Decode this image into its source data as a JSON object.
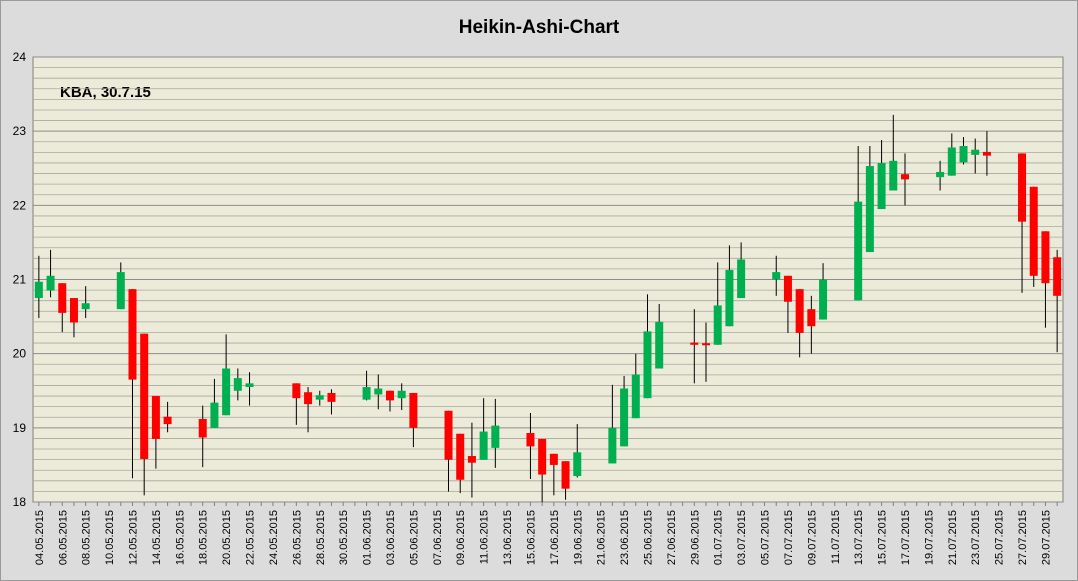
{
  "chart_data": {
    "type": "candlestick",
    "title": "Heikin-Ashi-Chart",
    "annotation": "KBA, 30.7.15",
    "categories": [
      "04.05.2015",
      null,
      "06.05.2015",
      null,
      "08.05.2015",
      null,
      "10.05.2015",
      null,
      "12.05.2015",
      null,
      "14.05.2015",
      null,
      "16.05.2015",
      null,
      "18.05.2015",
      null,
      "20.05.2015",
      null,
      "22.05.2015",
      null,
      "24.05.2015",
      null,
      "26.05.2015",
      null,
      "28.05.2015",
      null,
      "30.05.2015",
      null,
      "01.06.2015",
      null,
      "03.06.2015",
      null,
      "05.06.2015",
      null,
      "07.06.2015",
      null,
      "09.06.2015",
      null,
      "11.06.2015",
      null,
      "13.06.2015",
      null,
      "15.06.2015",
      null,
      "17.06.2015",
      null,
      "19.06.2015",
      null,
      "21.06.2015",
      null,
      "23.06.2015",
      null,
      "25.06.2015",
      null,
      "27.06.2015",
      null,
      "29.06.2015",
      null,
      "01.07.2015",
      null,
      "03.07.2015",
      null,
      "05.07.2015",
      null,
      "07.07.2015",
      null,
      "09.07.2015",
      null,
      "11.07.2015",
      null,
      "13.07.2015",
      null,
      "15.07.2015",
      null,
      "17.07.2015",
      null,
      "19.07.2015",
      null,
      "21.07.2015",
      null,
      "23.07.2015",
      null,
      "25.07.2015",
      null,
      "27.07.2015",
      null,
      "29.07.2015",
      null
    ],
    "open": [
      20.75,
      20.85,
      20.95,
      20.75,
      20.6,
      null,
      null,
      20.6,
      20.87,
      20.27,
      19.43,
      19.15,
      null,
      null,
      19.12,
      19.0,
      19.17,
      19.5,
      19.55,
      null,
      null,
      null,
      19.6,
      19.48,
      19.38,
      19.47,
      null,
      null,
      19.38,
      19.45,
      19.5,
      19.4,
      19.47,
      null,
      null,
      19.23,
      18.92,
      18.62,
      18.57,
      18.73,
      null,
      null,
      18.93,
      18.85,
      18.65,
      18.55,
      18.35,
      null,
      null,
      18.52,
      18.75,
      19.13,
      19.4,
      19.8,
      null,
      null,
      20.15,
      20.14,
      20.12,
      20.37,
      20.75,
      null,
      null,
      21.0,
      21.05,
      20.87,
      20.6,
      20.46,
      null,
      null,
      20.72,
      21.37,
      21.95,
      22.2,
      22.42,
      null,
      null,
      22.38,
      22.4,
      22.58,
      22.68,
      22.72,
      null,
      null,
      22.7,
      22.25,
      21.65,
      21.3
    ],
    "high": [
      21.32,
      21.4,
      20.95,
      20.75,
      20.91,
      null,
      null,
      21.23,
      20.87,
      20.27,
      19.43,
      19.35,
      null,
      null,
      19.3,
      19.66,
      20.26,
      19.8,
      19.75,
      null,
      null,
      null,
      19.6,
      19.55,
      19.5,
      19.52,
      null,
      null,
      19.77,
      19.72,
      19.5,
      19.6,
      19.47,
      null,
      null,
      19.23,
      18.92,
      19.07,
      19.4,
      19.39,
      null,
      null,
      19.2,
      18.85,
      18.65,
      18.55,
      19.05,
      null,
      null,
      19.58,
      19.7,
      20.0,
      20.8,
      20.67,
      null,
      null,
      20.6,
      20.42,
      21.23,
      21.46,
      21.5,
      null,
      null,
      21.32,
      21.05,
      20.87,
      20.78,
      21.22,
      null,
      null,
      22.8,
      22.8,
      22.88,
      23.22,
      22.7,
      null,
      null,
      22.6,
      22.97,
      22.92,
      22.9,
      23.0,
      null,
      null,
      22.7,
      22.25,
      21.65,
      21.4
    ],
    "low": [
      20.48,
      20.76,
      20.29,
      20.22,
      20.48,
      null,
      null,
      20.6,
      18.32,
      18.09,
      18.45,
      18.94,
      null,
      null,
      18.47,
      19.0,
      19.17,
      19.37,
      19.3,
      null,
      null,
      null,
      19.04,
      18.94,
      19.3,
      19.18,
      null,
      null,
      19.37,
      19.25,
      19.22,
      19.24,
      18.74,
      null,
      null,
      18.14,
      18.12,
      18.06,
      18.57,
      18.46,
      null,
      null,
      18.31,
      18.0,
      18.09,
      18.03,
      18.33,
      null,
      null,
      18.52,
      18.75,
      19.13,
      19.4,
      19.8,
      null,
      null,
      19.6,
      19.62,
      20.12,
      20.37,
      20.75,
      null,
      null,
      20.78,
      20.28,
      19.95,
      20.0,
      20.46,
      null,
      null,
      20.72,
      21.37,
      21.95,
      22.2,
      22.0,
      null,
      null,
      22.2,
      22.4,
      22.55,
      22.43,
      22.4,
      null,
      null,
      20.82,
      20.9,
      20.35,
      20.02
    ],
    "close": [
      20.97,
      21.05,
      20.55,
      20.42,
      20.68,
      null,
      null,
      21.1,
      19.65,
      18.58,
      18.85,
      19.05,
      null,
      null,
      18.87,
      19.34,
      19.8,
      19.67,
      19.6,
      null,
      null,
      null,
      19.4,
      19.32,
      19.44,
      19.35,
      null,
      null,
      19.55,
      19.53,
      19.37,
      19.5,
      19.0,
      null,
      null,
      18.57,
      18.3,
      18.53,
      18.95,
      19.03,
      null,
      null,
      18.75,
      18.37,
      18.5,
      18.18,
      18.67,
      null,
      null,
      19.0,
      19.53,
      19.72,
      20.3,
      20.43,
      null,
      null,
      20.12,
      20.12,
      20.65,
      21.13,
      21.27,
      null,
      null,
      21.1,
      20.7,
      20.28,
      20.37,
      21.0,
      null,
      null,
      22.05,
      22.53,
      22.57,
      22.6,
      22.35,
      null,
      null,
      22.45,
      22.78,
      22.8,
      22.75,
      22.67,
      null,
      null,
      21.78,
      21.05,
      20.95,
      20.78
    ],
    "up_color": "#00b050",
    "down_color": "#ff0000",
    "ylim": [
      18,
      24
    ],
    "yticks": [
      18,
      19,
      20,
      21,
      22,
      23,
      24
    ],
    "grid": true,
    "minor_divisions": 7
  }
}
